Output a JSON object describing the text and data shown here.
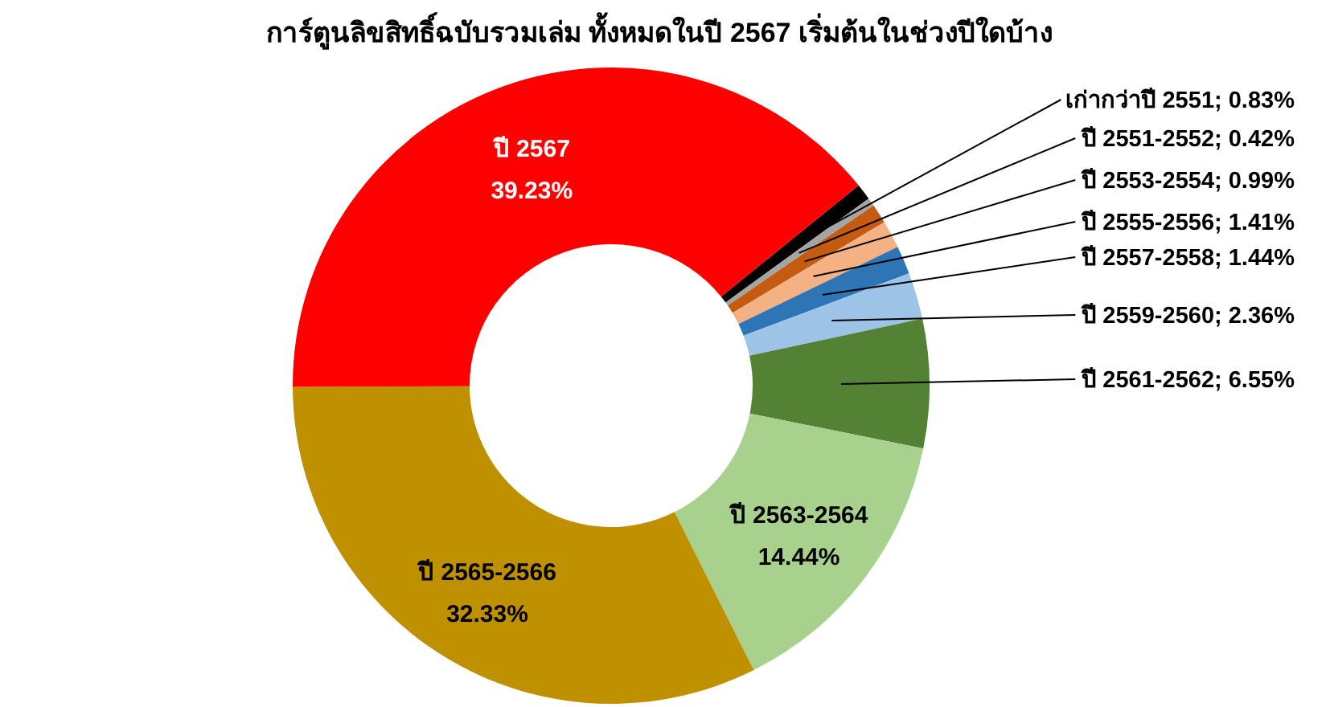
{
  "chart_data": {
    "type": "donut",
    "title": "การ์ตูนลิขสิทธิ์ฉบับรวมเล่ม ทั้งหมดในปี 2567 เริ่มต้นในช่วงปีใดบ้าง",
    "categories": [
      "เก่ากว่าปี 2551",
      "ปี 2551-2552",
      "ปี 2553-2554",
      "ปี 2555-2556",
      "ปี 2557-2558",
      "ปี 2559-2560",
      "ปี 2561-2562",
      "ปี 2563-2564",
      "ปี 2565-2566",
      "ปี 2567"
    ],
    "values": [
      0.83,
      0.42,
      0.99,
      1.41,
      1.44,
      2.36,
      6.55,
      14.44,
      32.33,
      39.23
    ],
    "colors": [
      "#000000",
      "#a5a5a5",
      "#c55a11",
      "#f4b183",
      "#2e75b6",
      "#9dc3e6",
      "#548235",
      "#a9d18e",
      "#bf9000",
      "#ff0000"
    ],
    "value_labels": [
      "; 0.83%",
      "; 0.42%",
      "; 0.99%",
      "; 1.41%",
      "; 1.44%",
      "; 2.36%",
      "; 6.55%",
      "14.44%",
      "32.33%",
      "39.23%"
    ]
  }
}
